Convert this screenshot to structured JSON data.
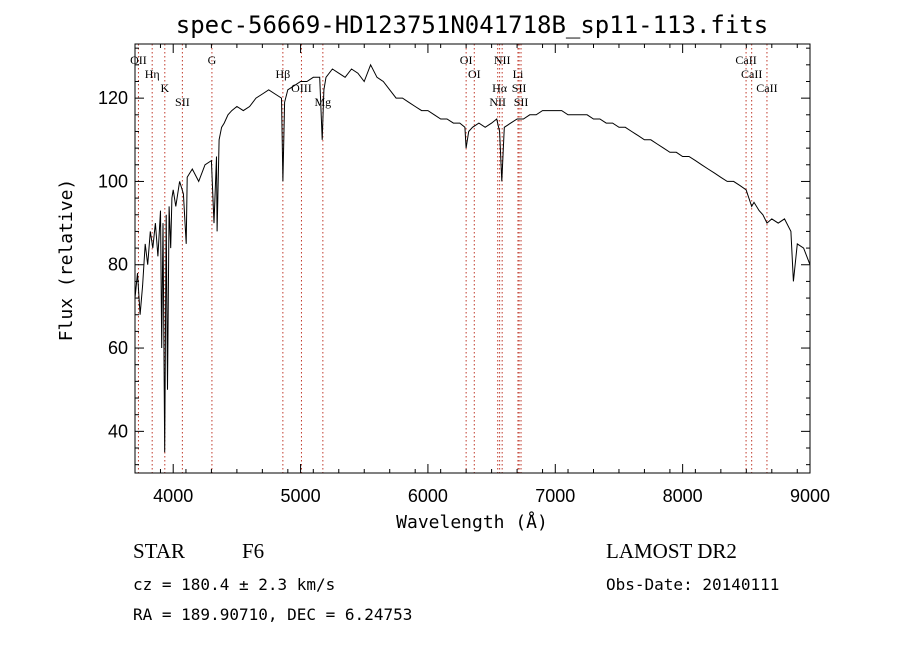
{
  "chart_data": {
    "type": "line",
    "title": "spec-56669-HD123751N041718B_sp11-113.fits",
    "xlabel": "Wavelength (Å)",
    "ylabel": "Flux (relative)",
    "xlim": [
      3700,
      9000
    ],
    "ylim": [
      30,
      133
    ],
    "xticks": [
      4000,
      5000,
      6000,
      7000,
      8000,
      9000
    ],
    "yticks": [
      40,
      60,
      80,
      100,
      120
    ],
    "grid": false,
    "series": [
      {
        "x": [
          3700,
          3720,
          3740,
          3760,
          3780,
          3800,
          3820,
          3840,
          3860,
          3880,
          3900,
          3910,
          3920,
          3933,
          3945,
          3955,
          3968,
          3980,
          3990,
          4000,
          4020,
          4050,
          4080,
          4102,
          4110,
          4150,
          4200,
          4250,
          4300,
          4320,
          4340,
          4345,
          4360,
          4380,
          4400,
          4430,
          4460,
          4500,
          4550,
          4600,
          4650,
          4700,
          4750,
          4800,
          4850,
          4861,
          4875,
          4900,
          4950,
          5000,
          5050,
          5100,
          5150,
          5170,
          5183,
          5200,
          5250,
          5300,
          5350,
          5400,
          5450,
          5500,
          5550,
          5600,
          5650,
          5700,
          5750,
          5800,
          5850,
          5900,
          5950,
          6000,
          6050,
          6100,
          6150,
          6200,
          6250,
          6290,
          6300,
          6320,
          6350,
          6400,
          6450,
          6500,
          6540,
          6563,
          6580,
          6600,
          6650,
          6700,
          6750,
          6800,
          6850,
          6900,
          6950,
          7000,
          7050,
          7100,
          7150,
          7200,
          7250,
          7300,
          7350,
          7400,
          7450,
          7500,
          7550,
          7600,
          7650,
          7700,
          7750,
          7800,
          7850,
          7900,
          7950,
          8000,
          8050,
          8100,
          8150,
          8200,
          8250,
          8300,
          8350,
          8400,
          8450,
          8498,
          8520,
          8542,
          8560,
          8600,
          8630,
          8662,
          8700,
          8750,
          8800,
          8850,
          8870,
          8900,
          8950,
          9000
        ],
        "values": [
          72,
          78,
          68,
          75,
          85,
          80,
          88,
          84,
          90,
          82,
          93,
          60,
          90,
          35,
          92,
          50,
          94,
          84,
          96,
          98,
          94,
          100,
          97,
          85,
          101,
          103,
          100,
          104,
          105,
          90,
          106,
          88,
          110,
          113,
          114,
          116,
          117,
          118,
          117,
          118,
          120,
          121,
          122,
          121,
          120,
          100,
          119,
          122,
          123,
          124,
          124,
          125,
          125,
          110,
          122,
          125,
          127,
          126,
          125,
          127,
          126,
          124,
          128,
          125,
          124,
          122,
          120,
          120,
          119,
          118,
          117,
          117,
          116,
          115,
          115,
          114,
          114,
          113,
          108,
          112,
          113,
          114,
          113,
          114,
          115,
          112,
          100,
          113,
          114,
          115,
          115,
          116,
          116,
          117,
          117,
          117,
          117,
          116,
          116,
          116,
          116,
          115,
          115,
          114,
          114,
          113,
          113,
          112,
          111,
          110,
          110,
          109,
          108,
          107,
          107,
          106,
          106,
          105,
          104,
          103,
          102,
          101,
          100,
          100,
          99,
          98,
          96,
          94,
          95,
          93,
          92,
          90,
          91,
          90,
          91,
          88,
          76,
          85,
          84,
          80
        ]
      }
    ],
    "spectral_lines": [
      {
        "label": "OII",
        "x": 3727
      },
      {
        "label": "Hη",
        "x": 3835
      },
      {
        "label": "K",
        "x": 3934
      },
      {
        "label": "SII",
        "x": 4072
      },
      {
        "label": "G",
        "x": 4304
      },
      {
        "label": "Hβ",
        "x": 4861
      },
      {
        "label": "OIII",
        "x": 5007
      },
      {
        "label": "Mg",
        "x": 5175
      },
      {
        "label": "OI",
        "x": 6300
      },
      {
        "label": "OI",
        "x": 6364
      },
      {
        "label": "Hα",
        "x": 6563
      },
      {
        "label": "NII",
        "x": 6548
      },
      {
        "label": "NII",
        "x": 6583
      },
      {
        "label": "Li",
        "x": 6707
      },
      {
        "label": "SII",
        "x": 6716
      },
      {
        "label": "SII",
        "x": 6731
      },
      {
        "label": "CaII",
        "x": 8498
      },
      {
        "label": "CaII",
        "x": 8542
      },
      {
        "label": "CaII",
        "x": 8662
      }
    ]
  },
  "info": {
    "class": "STAR",
    "subclass": "F6",
    "survey": "LAMOST DR2",
    "cz": "cz = 180.4 ± 2.3 km/s",
    "obs_date": "Obs-Date: 20140111",
    "coords": "RA = 189.90710, DEC =    6.24753"
  },
  "colors": {
    "spectrum": "#000000",
    "line_markers": "#c0392b",
    "axes": "#000000",
    "background": "#ffffff"
  }
}
